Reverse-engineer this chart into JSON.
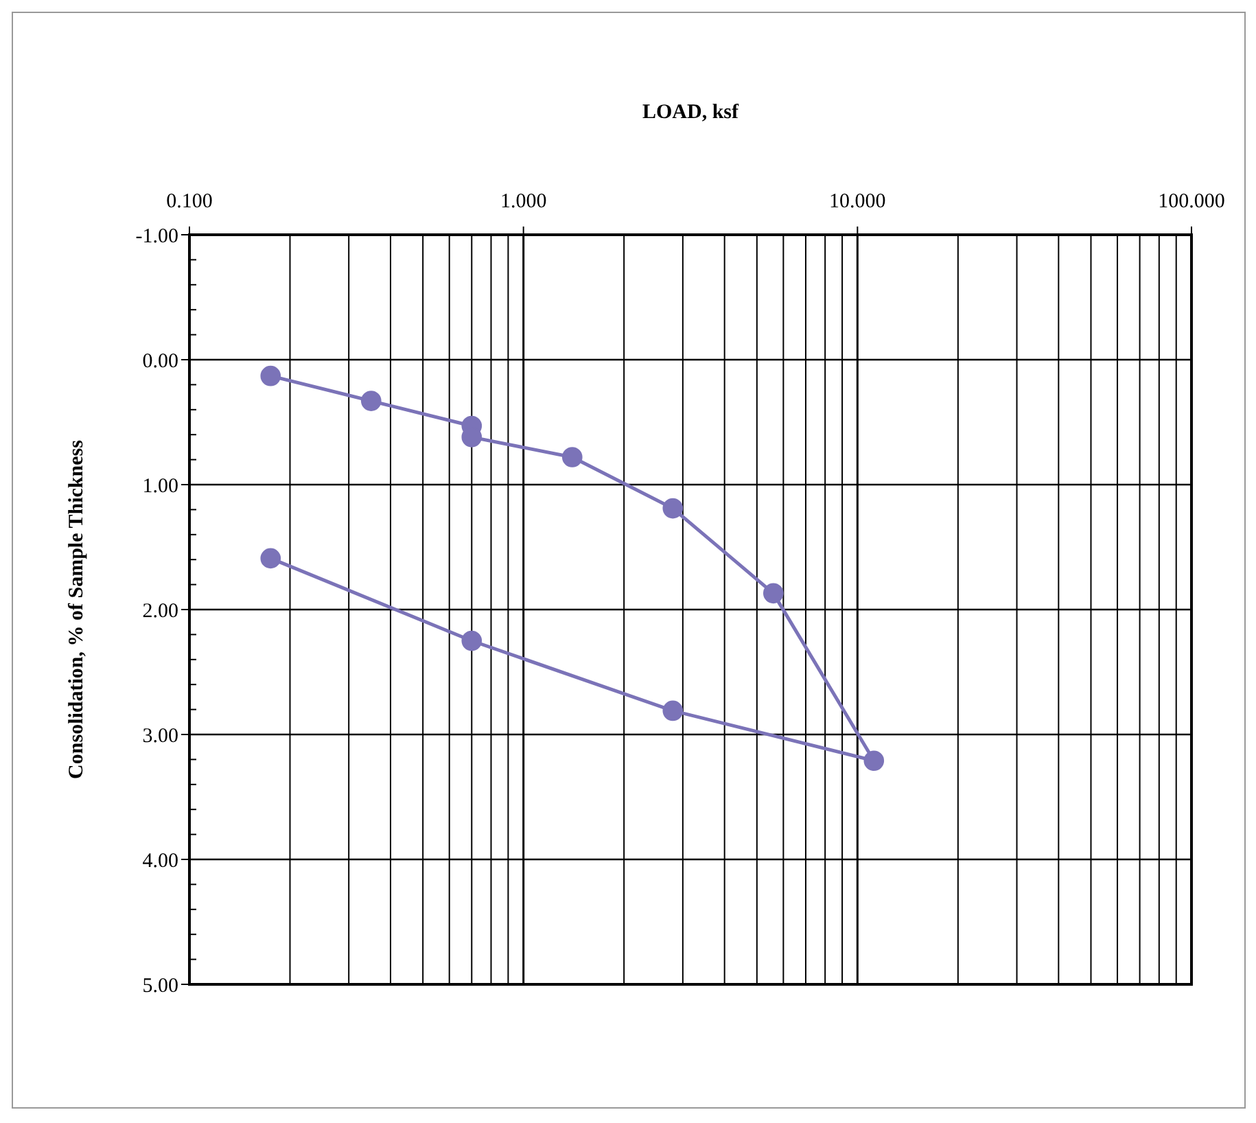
{
  "chart_data": {
    "type": "line",
    "xlabel": "LOAD, ksf",
    "ylabel": "Consolidation, % of Sample Thickness",
    "log": "x",
    "grid": true,
    "xlim": [
      0.1,
      100
    ],
    "ylim": [
      5,
      -1
    ],
    "xticks": [
      {
        "value": 0.1,
        "label": "0.100"
      },
      {
        "value": 1,
        "label": "1.000"
      },
      {
        "value": 10,
        "label": "10.000"
      },
      {
        "value": 100,
        "label": "100.000"
      }
    ],
    "yticks": [
      {
        "value": -1,
        "label": "-1.00"
      },
      {
        "value": 0,
        "label": "0.00"
      },
      {
        "value": 1,
        "label": "1.00"
      },
      {
        "value": 2,
        "label": "2.00"
      },
      {
        "value": 3,
        "label": "3.00"
      },
      {
        "value": 4,
        "label": "4.00"
      },
      {
        "value": 5,
        "label": "5.00"
      }
    ],
    "series": [
      {
        "color": "#7b73b8",
        "x": [
          0.175,
          0.35,
          0.7,
          0.7,
          1.4,
          2.8,
          5.6,
          11.2,
          2.8,
          0.7,
          0.175
        ],
        "values": [
          0.13,
          0.33,
          0.53,
          0.62,
          0.78,
          1.19,
          1.87,
          3.21,
          2.81,
          2.25,
          1.59
        ]
      },
      {
        "type": "scatter",
        "color": "#7b73b8",
        "marker": "circle",
        "x": [
          0.175,
          0.35,
          0.7,
          0.7
        ],
        "values": [
          0.13,
          0.33,
          0.53,
          0.62
        ]
      },
      {
        "type": "scatter",
        "color": "#7b73b8",
        "marker": "circle",
        "x": [
          1.4,
          2.8,
          5.6,
          11.2,
          2.8,
          0.7,
          0.175
        ],
        "values": [
          0.78,
          1.19,
          1.87,
          3.21,
          2.81,
          2.25,
          1.59
        ]
      }
    ]
  }
}
